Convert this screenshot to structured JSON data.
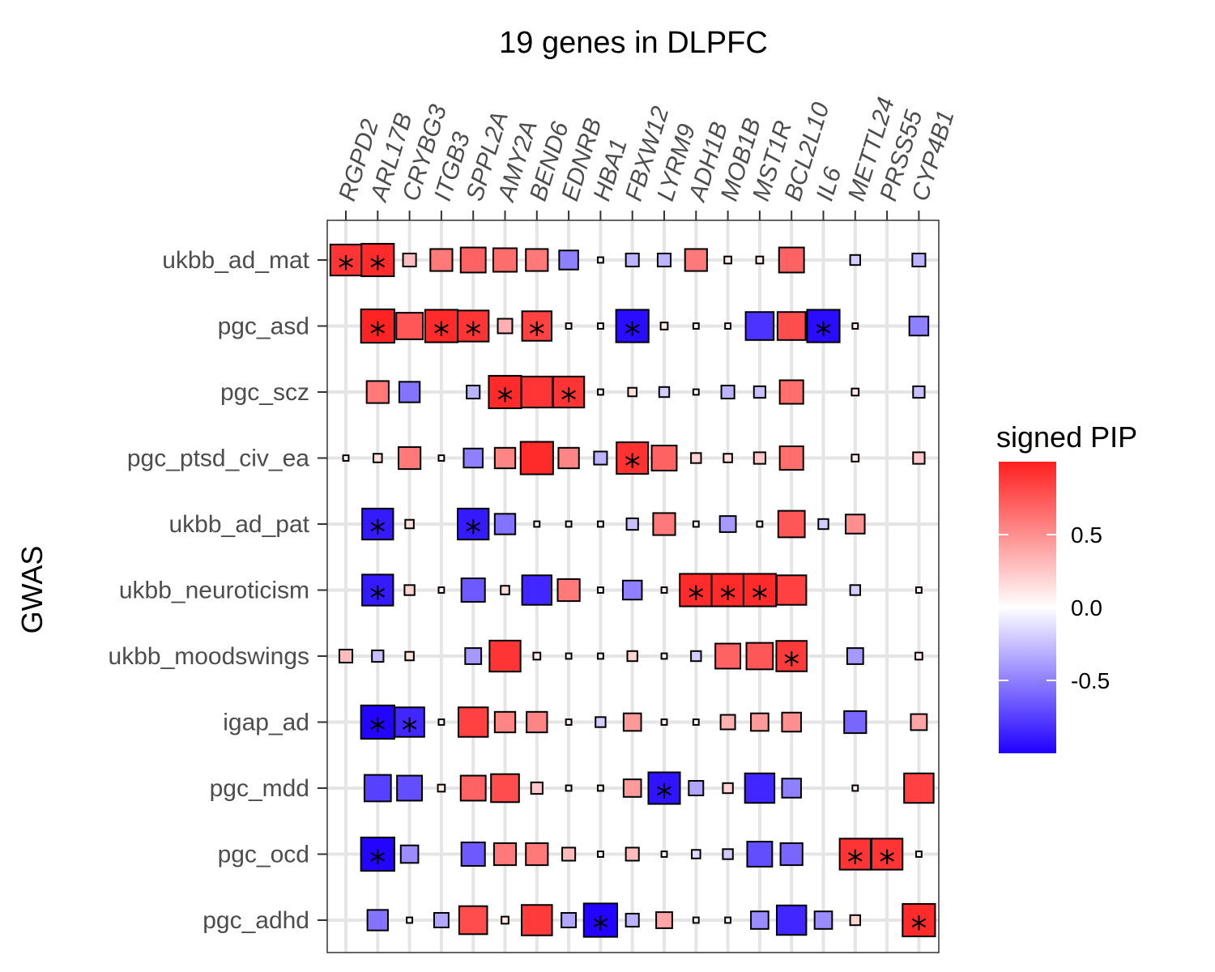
{
  "chart_data": {
    "type": "heatmap",
    "title": "19 genes in DLPFC",
    "xlabel": "",
    "ylabel": "GWAS",
    "x_categories": [
      "RGPD2",
      "ARL17B",
      "CRYBG3",
      "ITGB3",
      "SPPL2A",
      "AMY2A",
      "BEND6",
      "EDNRB",
      "HBA1",
      "FBXW12",
      "LYRM9",
      "ADH1B",
      "MOB1B",
      "MST1R",
      "BCL2L10",
      "IL6",
      "METTL24",
      "PRSS55",
      "CYP4B1"
    ],
    "y_categories": [
      "ukbb_ad_mat",
      "pgc_asd",
      "pgc_scz",
      "pgc_ptsd_civ_ea",
      "ukbb_ad_pat",
      "ukbb_neuroticism",
      "ukbb_moodswings",
      "igap_ad",
      "pgc_mdd",
      "pgc_ocd",
      "pgc_adhd"
    ],
    "legend": {
      "title": "signed PIP",
      "range": [
        -1,
        1
      ],
      "ticks": [
        "0.5",
        "0.0",
        "-0.5"
      ],
      "tick_values": [
        0.5,
        0.0,
        -0.5
      ],
      "colors": {
        "low": "#1f00ff",
        "mid": "#ffffff",
        "high": "#ff1f1f"
      },
      "placement": "right"
    },
    "grid": true,
    "significance_marker": "*",
    "rows": [
      {
        "gwas": "ukbb_ad_mat",
        "values": [
          0.9,
          0.95,
          0.3,
          0.6,
          0.7,
          0.65,
          0.6,
          -0.5,
          0.05,
          -0.3,
          -0.3,
          0.6,
          0.1,
          0.1,
          0.7,
          null,
          -0.2,
          null,
          -0.3
        ],
        "sig": [
          1,
          1,
          0,
          0,
          0,
          0,
          0,
          0,
          0,
          0,
          0,
          0,
          0,
          0,
          0,
          0,
          0,
          0,
          0
        ]
      },
      {
        "gwas": "pgc_asd",
        "values": [
          null,
          0.98,
          0.75,
          0.95,
          0.9,
          0.35,
          0.85,
          0.05,
          0.05,
          -0.95,
          0.1,
          0.05,
          0.05,
          -0.8,
          0.8,
          -0.95,
          0.05,
          null,
          -0.5
        ],
        "sig": [
          0,
          1,
          0,
          1,
          1,
          0,
          1,
          0,
          0,
          1,
          0,
          0,
          0,
          0,
          0,
          1,
          0,
          0,
          0
        ]
      },
      {
        "gwas": "pgc_scz",
        "values": [
          null,
          0.6,
          -0.55,
          null,
          -0.3,
          0.95,
          0.9,
          0.9,
          0.05,
          0.15,
          -0.2,
          0.05,
          -0.3,
          -0.25,
          0.65,
          null,
          0.1,
          null,
          -0.25
        ],
        "sig": [
          0,
          0,
          0,
          0,
          0,
          1,
          0,
          1,
          0,
          0,
          0,
          0,
          0,
          0,
          0,
          0,
          0,
          0,
          0
        ]
      },
      {
        "gwas": "pgc_ptsd_civ_ea",
        "values": [
          0.05,
          0.15,
          0.6,
          0.05,
          -0.5,
          0.55,
          0.95,
          0.55,
          -0.3,
          0.92,
          0.7,
          0.2,
          0.15,
          0.25,
          0.65,
          null,
          0.1,
          null,
          0.25
        ],
        "sig": [
          0,
          0,
          0,
          0,
          0,
          0,
          0,
          0,
          0,
          1,
          0,
          0,
          0,
          0,
          0,
          0,
          0,
          0,
          0
        ]
      },
      {
        "gwas": "ukbb_ad_pat",
        "values": [
          null,
          -0.9,
          0.15,
          null,
          -0.9,
          -0.55,
          0.05,
          0.05,
          0.05,
          -0.25,
          0.6,
          0.05,
          -0.4,
          0.05,
          0.75,
          -0.2,
          0.5,
          null,
          null
        ],
        "sig": [
          0,
          1,
          0,
          0,
          1,
          0,
          0,
          0,
          0,
          0,
          0,
          0,
          0,
          0,
          0,
          0,
          0,
          0,
          0
        ]
      },
      {
        "gwas": "ukbb_neuroticism",
        "values": [
          null,
          -0.9,
          0.2,
          0.05,
          -0.65,
          0.15,
          -0.85,
          0.6,
          0.05,
          -0.5,
          0.05,
          0.95,
          0.95,
          0.95,
          0.85,
          null,
          -0.2,
          null,
          0.05
        ],
        "sig": [
          0,
          1,
          0,
          0,
          0,
          0,
          0,
          0,
          0,
          0,
          0,
          1,
          1,
          1,
          0,
          0,
          0,
          0,
          0
        ]
      },
      {
        "gwas": "ukbb_moodswings",
        "values": [
          0.3,
          -0.25,
          0.15,
          null,
          -0.4,
          0.9,
          0.1,
          0.05,
          0.05,
          0.2,
          0.05,
          -0.2,
          0.7,
          0.75,
          0.88,
          null,
          -0.4,
          null,
          0.1
        ],
        "sig": [
          0,
          0,
          0,
          0,
          0,
          0,
          0,
          0,
          0,
          0,
          0,
          0,
          0,
          0,
          1,
          0,
          0,
          0,
          0
        ]
      },
      {
        "gwas": "igap_ad",
        "values": [
          null,
          -0.98,
          -0.85,
          0.05,
          0.85,
          0.55,
          0.55,
          0.05,
          -0.2,
          0.45,
          0.05,
          0.05,
          0.35,
          0.45,
          0.5,
          null,
          -0.6,
          null,
          0.4
        ],
        "sig": [
          0,
          1,
          1,
          0,
          0,
          0,
          0,
          0,
          0,
          0,
          0,
          0,
          0,
          0,
          0,
          0,
          0,
          0,
          0
        ]
      },
      {
        "gwas": "pgc_mdd",
        "values": [
          null,
          -0.75,
          -0.7,
          0.1,
          0.7,
          0.8,
          0.25,
          0.05,
          0.05,
          0.45,
          -0.92,
          -0.35,
          0.2,
          -0.85,
          -0.5,
          null,
          0.05,
          null,
          0.85
        ],
        "sig": [
          0,
          0,
          0,
          0,
          0,
          0,
          0,
          0,
          0,
          0,
          1,
          0,
          0,
          0,
          0,
          0,
          0,
          0,
          0
        ]
      },
      {
        "gwas": "pgc_ocd",
        "values": [
          null,
          -0.98,
          -0.45,
          null,
          -0.65,
          0.6,
          0.6,
          0.3,
          0.05,
          0.3,
          0.05,
          -0.15,
          -0.2,
          -0.7,
          -0.6,
          null,
          0.9,
          0.9,
          0.05
        ],
        "sig": [
          0,
          1,
          0,
          0,
          0,
          0,
          0,
          0,
          0,
          0,
          0,
          0,
          0,
          0,
          0,
          0,
          1,
          1,
          0
        ]
      },
      {
        "gwas": "pgc_adhd",
        "values": [
          null,
          -0.55,
          0.05,
          -0.35,
          0.8,
          0.1,
          0.88,
          -0.35,
          -0.98,
          -0.3,
          0.4,
          0.05,
          0.05,
          -0.45,
          -0.85,
          -0.45,
          0.2,
          null,
          0.95
        ],
        "sig": [
          0,
          0,
          0,
          0,
          0,
          0,
          0,
          0,
          1,
          0,
          0,
          0,
          0,
          0,
          0,
          0,
          0,
          0,
          1
        ]
      }
    ]
  }
}
